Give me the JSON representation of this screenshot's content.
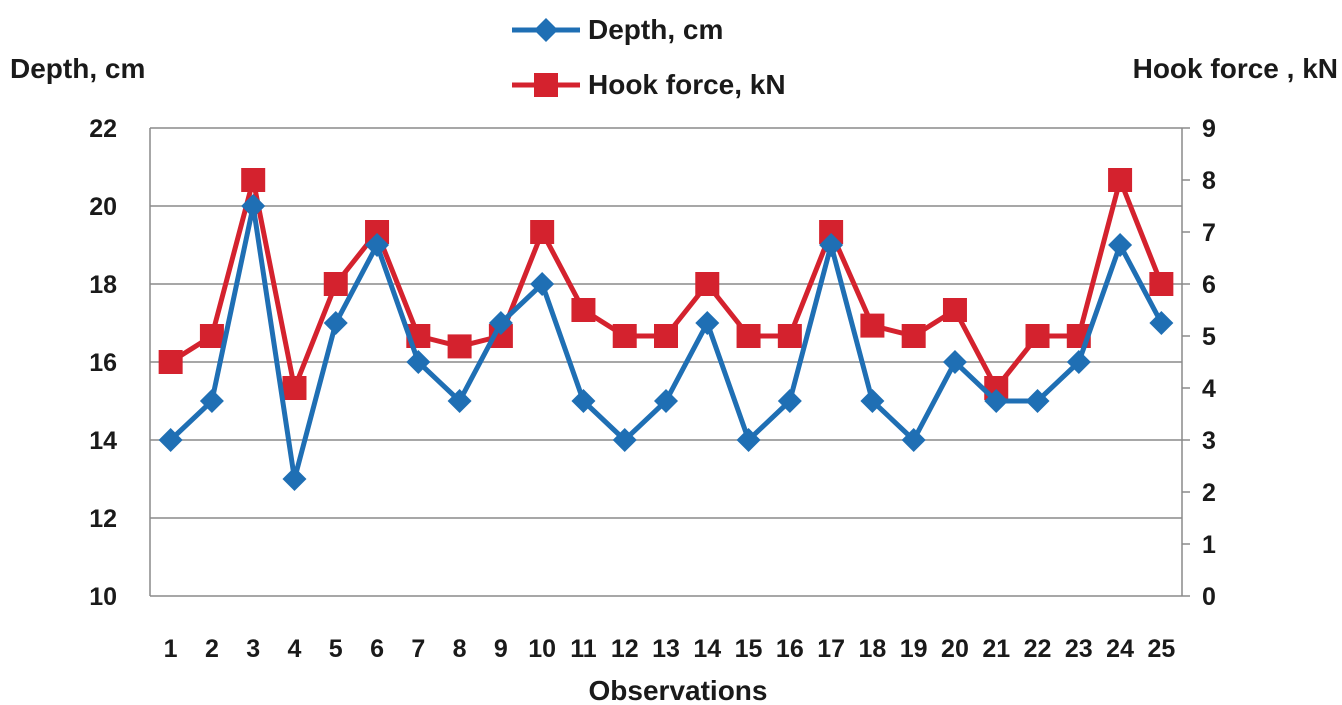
{
  "chart_data": {
    "type": "line",
    "title": "",
    "xlabel": "Observations",
    "ylabel": "Depth, cm",
    "y2label": "Hook force , kN",
    "categories": [
      "1",
      "2",
      "3",
      "4",
      "5",
      "6",
      "7",
      "8",
      "9",
      "10",
      "11",
      "12",
      "13",
      "14",
      "15",
      "16",
      "17",
      "18",
      "19",
      "20",
      "21",
      "22",
      "23",
      "24",
      "25"
    ],
    "ylim": [
      10,
      22
    ],
    "yticks": [
      "10",
      "12",
      "14",
      "16",
      "18",
      "20",
      "22"
    ],
    "y2lim": [
      0,
      9
    ],
    "y2ticks": [
      "0",
      "1",
      "2",
      "3",
      "4",
      "5",
      "6",
      "7",
      "8",
      "9"
    ],
    "grid": true,
    "legend_position": "top-center",
    "series": [
      {
        "name": "Depth, cm",
        "axis": "left",
        "color": "#1f6fb4",
        "marker": "diamond",
        "values": [
          14,
          15,
          20,
          13,
          17,
          19,
          16,
          15,
          17,
          18,
          15,
          14,
          15,
          17,
          14,
          15,
          19,
          15,
          14,
          16,
          15,
          15,
          16,
          19,
          17
        ]
      },
      {
        "name": "Hook force, kN",
        "axis": "right",
        "color": "#d4222e",
        "marker": "square",
        "values": [
          4.5,
          5,
          8,
          4,
          6,
          7,
          5,
          4.8,
          5,
          7,
          5.5,
          5,
          5,
          6,
          5,
          5,
          7,
          5.2,
          5,
          5.5,
          4,
          5,
          5,
          8,
          6
        ]
      }
    ]
  }
}
